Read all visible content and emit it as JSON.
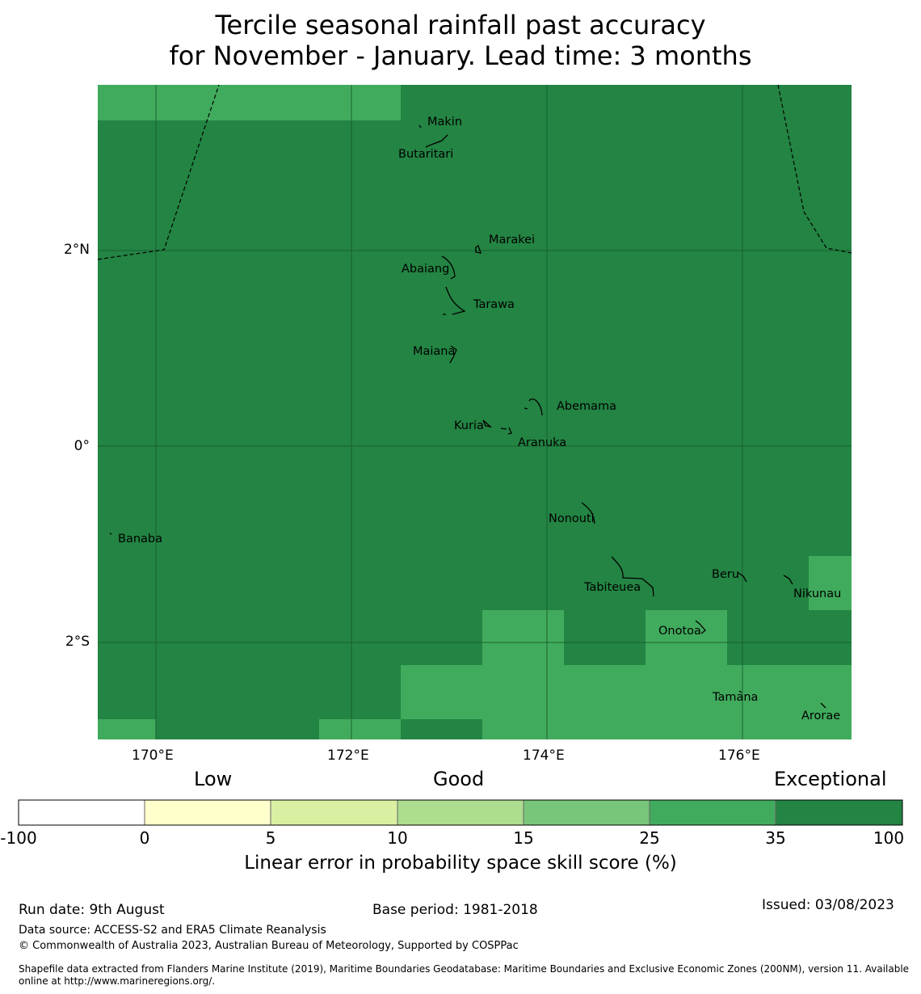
{
  "title": {
    "line1": "Tercile seasonal rainfall past accuracy",
    "line2": "for November - January. Lead time: 3 months"
  },
  "map": {
    "x_ticks": [
      "170°E",
      "172°E",
      "174°E",
      "176°E"
    ],
    "y_ticks": [
      "2°N",
      "0°",
      "2°S"
    ],
    "colors": {
      "light": "#41ab5d",
      "dark": "#238443"
    },
    "islands": [
      "Makin",
      "Butaritari",
      "Marakei",
      "Abaiang",
      "Tarawa",
      "Maiana",
      "Abemama",
      "Kuria",
      "Aranuka",
      "Nonouti",
      "Banaba",
      "Beru",
      "Tabiteuea",
      "Nikunau",
      "Onotoa",
      "Tamana",
      "Arorae"
    ]
  },
  "colorbar": {
    "categories": [
      "Low",
      "Good",
      "Exceptional"
    ],
    "ticks": [
      "-100",
      "0",
      "5",
      "10",
      "15",
      "25",
      "35",
      "100"
    ],
    "colors": [
      "#ffffff",
      "#ffffcc",
      "#d9f0a3",
      "#addd8e",
      "#78c679",
      "#41ab5d",
      "#238443"
    ],
    "label": "Linear error in probability space skill score (%)"
  },
  "footer": {
    "run_date": "Run date: 9th August",
    "base_period": "Base period: 1981-2018",
    "issued": "Issued: 03/08/2023",
    "data_source": "Data source: ACCESS-S2 and ERA5 Climate Reanalysis",
    "copyright": "© Commonwealth of Australia 2023, Australian Bureau of Meteorology, Supported by COSPPac",
    "shapefile_line1": "Shapefile data extracted from Flanders Marine Institute (2019), Maritime Boundaries Geodatabase: Maritime Boundaries and Exclusive Economic Zones (200NM), version 11. Available",
    "shapefile_line2": "online at http://www.marineregions.org/."
  }
}
